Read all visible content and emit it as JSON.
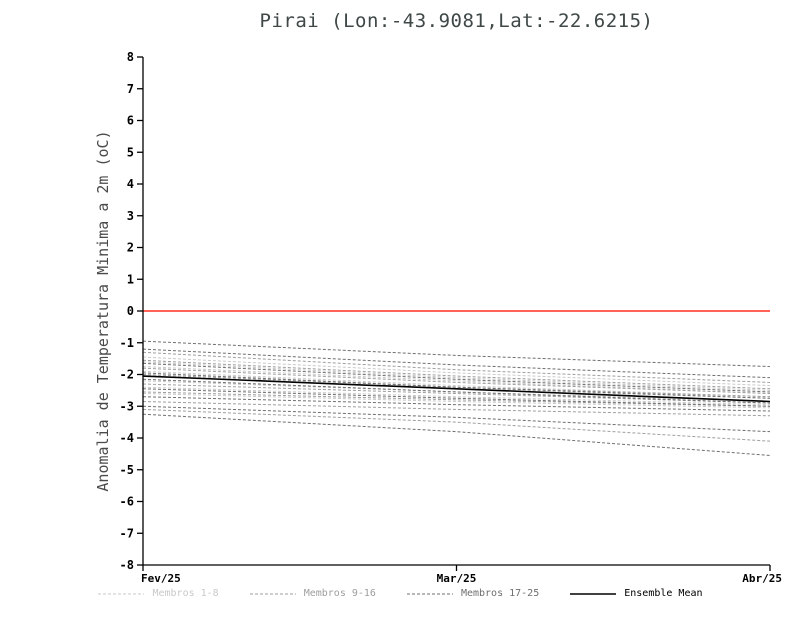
{
  "chart_data": {
    "type": "line",
    "title": "Pirai (Lon:-43.9081,Lat:-22.6215)",
    "ylabel": "Anomalia de Temperatura Minima a 2m (oC)",
    "xlabel": "",
    "x_tick_labels": [
      "Fev/25",
      "Mar/25",
      "Abr/25"
    ],
    "y_tick_labels": [
      "8",
      "7",
      "6",
      "5",
      "4",
      "3",
      "2",
      "1",
      "0",
      "-1",
      "-2",
      "-3",
      "-4",
      "-5",
      "-6",
      "-7",
      "-8"
    ],
    "ylim": [
      -8,
      8
    ],
    "grid": false,
    "legend_position": "bottom",
    "zero_line": {
      "value": 0,
      "color": "#ff2e1f"
    },
    "groups": [
      {
        "name": "Membros 1-8",
        "color": "#c9c9c9",
        "style": "dashed",
        "members": [
          [
            -1.45,
            -1.95,
            -2.35
          ],
          [
            -1.6,
            -2.1,
            -2.5
          ],
          [
            -1.75,
            -2.2,
            -2.6
          ],
          [
            -1.9,
            -2.35,
            -2.7
          ],
          [
            -2.05,
            -2.45,
            -2.75
          ],
          [
            -2.2,
            -2.55,
            -2.85
          ],
          [
            -2.4,
            -2.7,
            -2.95
          ],
          [
            -2.6,
            -2.85,
            -3.05
          ]
        ]
      },
      {
        "name": "Membros 9-16",
        "color": "#9e9e9e",
        "style": "dashed",
        "members": [
          [
            -1.3,
            -1.85,
            -2.25
          ],
          [
            -1.55,
            -2.05,
            -2.45
          ],
          [
            -1.8,
            -2.25,
            -2.6
          ],
          [
            -2.0,
            -2.4,
            -2.7
          ],
          [
            -2.3,
            -2.6,
            -2.9
          ],
          [
            -2.55,
            -2.8,
            -3.0
          ],
          [
            -2.85,
            -3.1,
            -3.3
          ],
          [
            -3.1,
            -3.5,
            -4.1
          ]
        ]
      },
      {
        "name": "Membros 17-25",
        "color": "#6f6f6f",
        "style": "dashed",
        "members": [
          [
            -0.95,
            -1.4,
            -1.75
          ],
          [
            -1.2,
            -1.7,
            -2.1
          ],
          [
            -1.65,
            -2.15,
            -2.55
          ],
          [
            -1.95,
            -2.4,
            -2.75
          ],
          [
            -2.15,
            -2.55,
            -2.9
          ],
          [
            -2.45,
            -2.75,
            -3.0
          ],
          [
            -2.7,
            -2.95,
            -3.15
          ],
          [
            -3.0,
            -3.35,
            -3.8
          ],
          [
            -3.25,
            -3.8,
            -4.55
          ]
        ]
      }
    ],
    "ensemble_mean": {
      "name": "Ensemble Mean",
      "color": "#000000",
      "style": "solid",
      "values": [
        -2.05,
        -2.45,
        -2.85
      ]
    },
    "legend": [
      {
        "label": "Membros 1-8",
        "color": "#c9c9c9",
        "dash": true
      },
      {
        "label": "Membros 9-16",
        "color": "#9e9e9e",
        "dash": true
      },
      {
        "label": "Membros 17-25",
        "color": "#6f6f6f",
        "dash": true
      },
      {
        "label": "Ensemble Mean",
        "color": "#000000",
        "dash": false
      }
    ]
  }
}
